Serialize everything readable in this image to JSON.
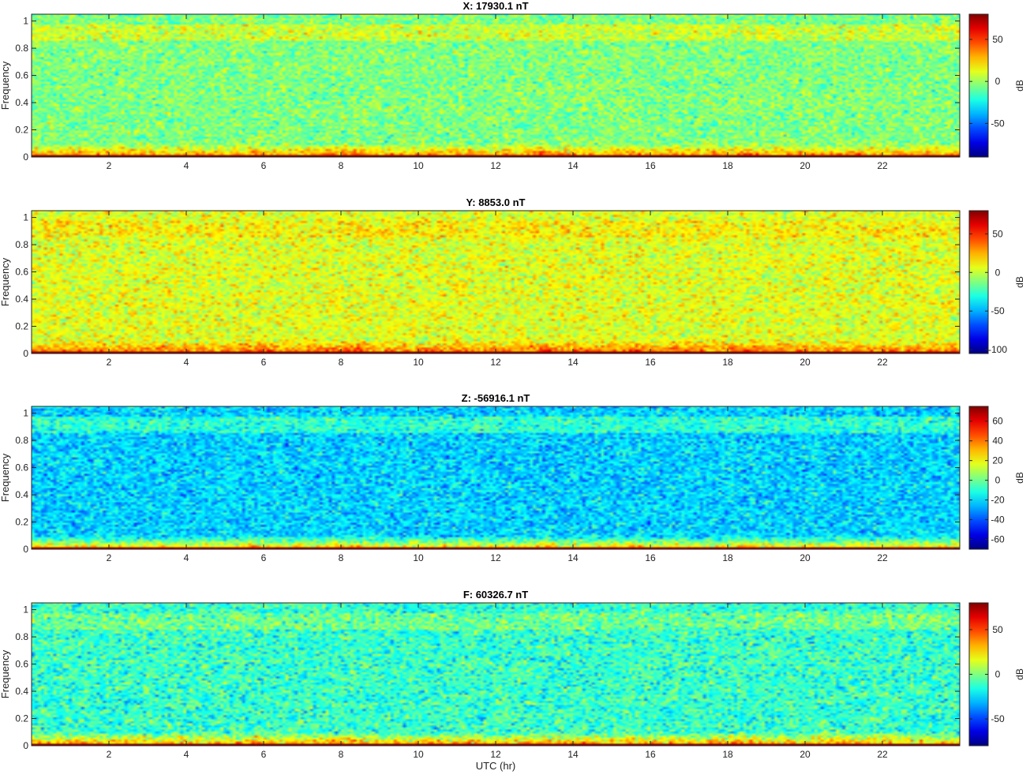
{
  "chart_data": [
    {
      "type": "heatmap",
      "title": "X: 17930.1 nT",
      "xlabel": "",
      "ylabel": "Frequency",
      "xlim": [
        0,
        24
      ],
      "ylim": [
        0,
        1.05
      ],
      "x_ticks": [
        2,
        4,
        6,
        8,
        10,
        12,
        14,
        16,
        18,
        20,
        22
      ],
      "y_ticks": [
        0,
        0.2,
        0.4,
        0.6,
        0.8,
        1
      ],
      "colorbar": {
        "label": "dB",
        "range": [
          -90,
          80
        ],
        "ticks": [
          -50,
          0,
          50
        ]
      },
      "colormap": "jet",
      "pattern": {
        "base_db": -5,
        "band_db": 8,
        "low_db": 40,
        "floor_db": 80,
        "noise_db": 10
      }
    },
    {
      "type": "heatmap",
      "title": "Y: 8853.0 nT",
      "xlabel": "",
      "ylabel": "Frequency",
      "xlim": [
        0,
        24
      ],
      "ylim": [
        0,
        1.05
      ],
      "x_ticks": [
        2,
        4,
        6,
        8,
        10,
        12,
        14,
        16,
        18,
        20,
        22
      ],
      "y_ticks": [
        0,
        0.2,
        0.4,
        0.6,
        0.8,
        1
      ],
      "colorbar": {
        "label": "dB",
        "range": [
          -105,
          80
        ],
        "ticks": [
          -100,
          -50,
          0,
          50
        ]
      },
      "colormap": "jet",
      "pattern": {
        "base_db": 5,
        "band_db": 12,
        "low_db": 40,
        "floor_db": 80,
        "noise_db": 11
      }
    },
    {
      "type": "heatmap",
      "title": "Z: -56916.1 nT",
      "xlabel": "",
      "ylabel": "Frequency",
      "xlim": [
        0,
        24
      ],
      "ylim": [
        0,
        1.05
      ],
      "x_ticks": [
        2,
        4,
        6,
        8,
        10,
        12,
        14,
        16,
        18,
        20,
        22
      ],
      "y_ticks": [
        0,
        0.2,
        0.4,
        0.6,
        0.8,
        1
      ],
      "colorbar": {
        "label": "dB",
        "range": [
          -70,
          75
        ],
        "ticks": [
          -60,
          -40,
          -20,
          0,
          20,
          40,
          60
        ]
      },
      "colormap": "jet",
      "pattern": {
        "base_db": -22,
        "band_db": -10,
        "low_db": 30,
        "floor_db": 70,
        "noise_db": 9
      }
    },
    {
      "type": "heatmap",
      "title": "F: 60326.7 nT",
      "xlabel": "UTC (hr)",
      "ylabel": "Frequency",
      "xlim": [
        0,
        24
      ],
      "ylim": [
        0,
        1.05
      ],
      "x_ticks": [
        2,
        4,
        6,
        8,
        10,
        12,
        14,
        16,
        18,
        20,
        22
      ],
      "y_ticks": [
        0,
        0.2,
        0.4,
        0.6,
        0.8,
        1
      ],
      "colorbar": {
        "label": "dB",
        "range": [
          -80,
          80
        ],
        "ticks": [
          -50,
          0,
          50
        ]
      },
      "colormap": "jet",
      "pattern": {
        "base_db": -12,
        "band_db": -3,
        "low_db": 40,
        "floor_db": 80,
        "noise_db": 11
      }
    }
  ]
}
